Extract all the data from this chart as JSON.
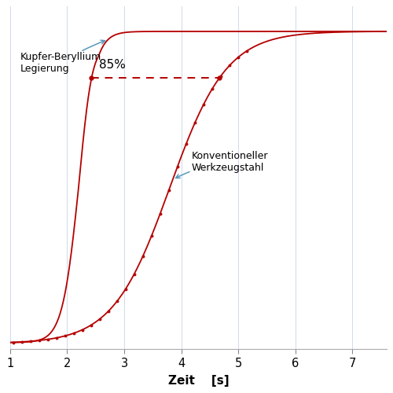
{
  "title": "",
  "xlabel": "Zeit    [s]",
  "xlim": [
    1.0,
    7.6
  ],
  "ylim": [
    -0.02,
    1.08
  ],
  "x_ticks": [
    1,
    2,
    3,
    4,
    5,
    6,
    7
  ],
  "background_color": "#ffffff",
  "grid_color": "#c8d4e8",
  "line_color": "#b50000",
  "curve1_label": "Kupfer-Beryllium\nLegierung",
  "curve2_label": "Konventioneller\nWerkzeugstahl",
  "annotation_85": "85%",
  "arrow_color": "#5599bb"
}
